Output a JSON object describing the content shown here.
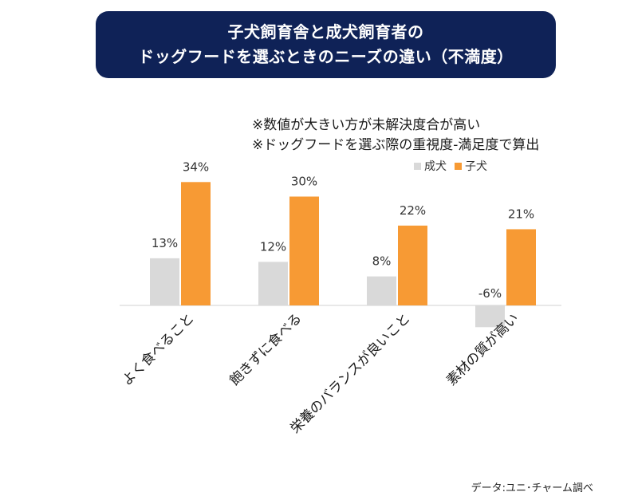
{
  "title": {
    "line1": "子犬飼育舎と成犬飼育者の",
    "line2": "ドッグフードを選ぶときのニーズの違い（不満度）"
  },
  "notes": {
    "line1": "※数値が大きい方が未解決度合が高い",
    "line2": "※ドッグフードを選ぶ際の重視度-満足度で算出"
  },
  "credit": "データ:ユニ･チャーム調べ",
  "colors": {
    "adult": "#d9d9d9",
    "puppy": "#f79a34",
    "title_bg": "#0f2257",
    "axis": "#d9d9d9"
  },
  "chart_data": {
    "type": "bar",
    "title": "子犬飼育舎と成犬飼育者のドッグフードを選ぶときのニーズの違い（不満度）",
    "categories": [
      "よく食べること",
      "飽きずに食べる",
      "栄養のバランスが良いこと",
      "素材の質が高い"
    ],
    "series": [
      {
        "name": "成犬",
        "values": [
          13,
          12,
          8,
          -6
        ],
        "labels": [
          "13%",
          "12%",
          "8%",
          "-6%"
        ]
      },
      {
        "name": "子犬",
        "values": [
          34,
          30,
          22,
          21
        ],
        "labels": [
          "34%",
          "30%",
          "22%",
          "21%"
        ]
      }
    ],
    "unit": "%",
    "ylim": [
      -10,
      40
    ],
    "legend": "top-right",
    "grid": false
  }
}
